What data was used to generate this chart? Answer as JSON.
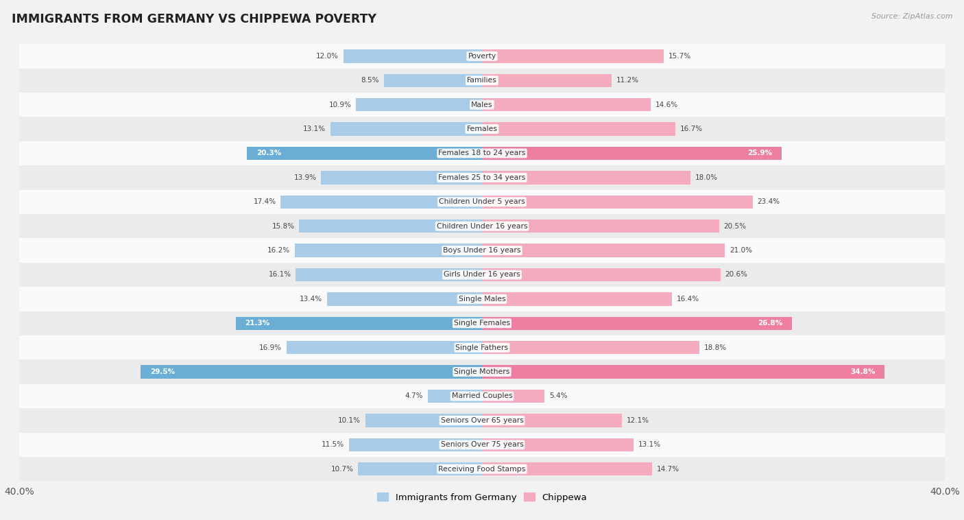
{
  "title": "IMMIGRANTS FROM GERMANY VS CHIPPEWA POVERTY",
  "source": "Source: ZipAtlas.com",
  "categories": [
    "Poverty",
    "Families",
    "Males",
    "Females",
    "Females 18 to 24 years",
    "Females 25 to 34 years",
    "Children Under 5 years",
    "Children Under 16 years",
    "Boys Under 16 years",
    "Girls Under 16 years",
    "Single Males",
    "Single Females",
    "Single Fathers",
    "Single Mothers",
    "Married Couples",
    "Seniors Over 65 years",
    "Seniors Over 75 years",
    "Receiving Food Stamps"
  ],
  "germany_values": [
    12.0,
    8.5,
    10.9,
    13.1,
    20.3,
    13.9,
    17.4,
    15.8,
    16.2,
    16.1,
    13.4,
    21.3,
    16.9,
    29.5,
    4.7,
    10.1,
    11.5,
    10.7
  ],
  "chippewa_values": [
    15.7,
    11.2,
    14.6,
    16.7,
    25.9,
    18.0,
    23.4,
    20.5,
    21.0,
    20.6,
    16.4,
    26.8,
    18.8,
    34.8,
    5.4,
    12.1,
    13.1,
    14.7
  ],
  "germany_color": "#A8CCE8",
  "chippewa_color": "#F4ABBE",
  "germany_highlight_color": "#6AADD5",
  "chippewa_highlight_color": "#EF7FA0",
  "background_color": "#F2F2F2",
  "row_color_light": "#FAFAFA",
  "row_color_dark": "#EBEBEB",
  "xlim": 40.0,
  "bar_height": 0.55,
  "highlight_rows": [
    4,
    11,
    13
  ],
  "legend_label_germany": "Immigrants from Germany",
  "legend_label_chippewa": "Chippewa"
}
